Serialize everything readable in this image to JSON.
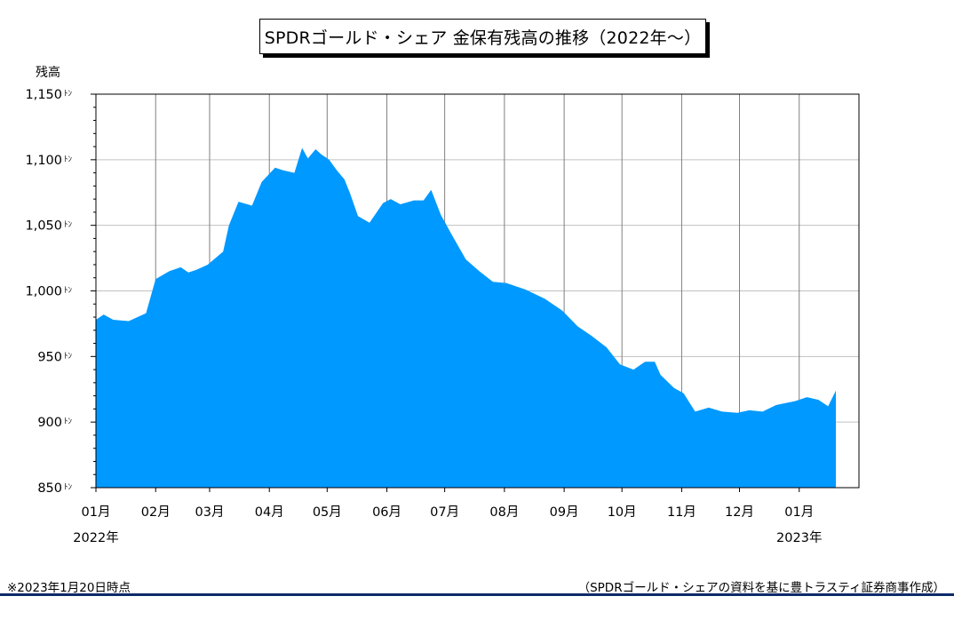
{
  "title": "SPDRゴールド・シェア 金保有残高の推移（2022年～）",
  "footnote_left": "※2023年1月20日時点",
  "footnote_right": "（SPDRゴールド・シェアの資料を基に豊トラスティ証券商事作成）",
  "colors": {
    "area": "#0099ff",
    "grid": "#c0c0c0",
    "vgrid": "#808080",
    "footer_rule": "#0d2a6b"
  },
  "chart_data": {
    "type": "area",
    "ylabel": "残高",
    "y_unit": "ﾄﾝ",
    "ylim": [
      850,
      1150
    ],
    "y_ticks": [
      "1,150",
      "1,100",
      "1,050",
      "1,000",
      "950",
      "900",
      "850"
    ],
    "x_tick_labels": [
      "01月",
      "02月",
      "03月",
      "04月",
      "05月",
      "06月",
      "07月",
      "08月",
      "09月",
      "10月",
      "11月",
      "12月",
      "01月"
    ],
    "year_labels": [
      "2022年",
      "2023年"
    ],
    "grid": true,
    "series": [
      {
        "x": [
          "2022-01-01",
          "2022-01-05",
          "2022-01-10",
          "2022-01-18",
          "2022-01-27",
          "2022-02-01",
          "2022-02-08",
          "2022-02-14",
          "2022-02-18",
          "2022-02-22",
          "2022-02-28",
          "2022-03-04",
          "2022-03-08",
          "2022-03-11",
          "2022-03-16",
          "2022-03-23",
          "2022-03-28",
          "2022-04-04",
          "2022-04-08",
          "2022-04-14",
          "2022-04-18",
          "2022-04-21",
          "2022-04-25",
          "2022-04-28",
          "2022-05-02",
          "2022-05-06",
          "2022-05-10",
          "2022-05-13",
          "2022-05-17",
          "2022-05-23",
          "2022-05-30",
          "2022-06-03",
          "2022-06-08",
          "2022-06-15",
          "2022-06-20",
          "2022-06-24",
          "2022-06-29",
          "2022-07-05",
          "2022-07-12",
          "2022-07-19",
          "2022-07-26",
          "2022-08-02",
          "2022-08-12",
          "2022-08-22",
          "2022-08-31",
          "2022-09-08",
          "2022-09-15",
          "2022-09-23",
          "2022-09-30",
          "2022-10-07",
          "2022-10-13",
          "2022-10-18",
          "2022-10-21",
          "2022-10-28",
          "2022-11-02",
          "2022-11-08",
          "2022-11-15",
          "2022-11-22",
          "2022-11-30",
          "2022-12-06",
          "2022-12-13",
          "2022-12-20",
          "2022-12-30",
          "2023-01-05",
          "2023-01-11",
          "2023-01-16",
          "2023-01-20"
        ],
        "values": [
          978,
          982,
          978,
          977,
          983,
          1009,
          1015,
          1018,
          1014,
          1016,
          1020,
          1025,
          1030,
          1050,
          1068,
          1065,
          1083,
          1094,
          1092,
          1090,
          1109,
          1101,
          1108,
          1104,
          1100,
          1092,
          1085,
          1074,
          1057,
          1052,
          1067,
          1070,
          1066,
          1069,
          1069,
          1077,
          1058,
          1042,
          1024,
          1015,
          1007,
          1006,
          1001,
          994,
          985,
          973,
          966,
          957,
          944,
          940,
          946,
          946,
          936,
          926,
          922,
          908,
          911,
          908,
          907,
          909,
          908,
          913,
          916,
          919,
          917,
          912,
          924
        ]
      }
    ]
  }
}
